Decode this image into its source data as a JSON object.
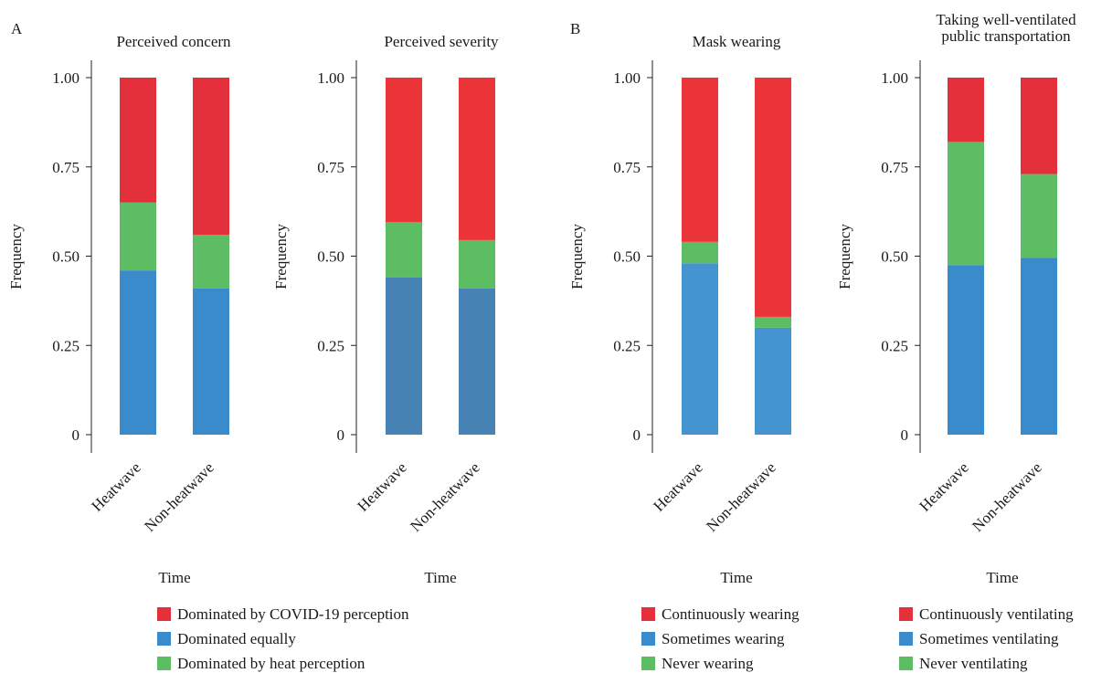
{
  "panel_letters": [
    "A",
    "B"
  ],
  "chart_data": [
    {
      "type": "bar",
      "stacked": true,
      "panel": "A",
      "title": "Perceived concern",
      "xlabel": "Time",
      "ylabel": "Frequency",
      "ylim": [
        0,
        1
      ],
      "yticks": [
        "0",
        "0.25",
        "0.50",
        "0.75",
        "1.00"
      ],
      "categories": [
        "Heatwave",
        "Non-heatwave"
      ],
      "series": [
        {
          "name": "Dominated equally",
          "color": "#3a8bcb",
          "values": [
            0.46,
            0.41
          ]
        },
        {
          "name": "Dominated by heat perception",
          "color": "#5cbd63",
          "values": [
            0.19,
            0.15
          ]
        },
        {
          "name": "Dominated by COVID-19 perception",
          "color": "#e3303a",
          "values": [
            0.35,
            0.44
          ]
        }
      ]
    },
    {
      "type": "bar",
      "stacked": true,
      "panel": "A",
      "title": "Perceived severity",
      "xlabel": "Time",
      "ylabel": "Frequency",
      "ylim": [
        0,
        1
      ],
      "yticks": [
        "0",
        "0.25",
        "0.50",
        "0.75",
        "1.00"
      ],
      "categories": [
        "Heatwave",
        "Non-heatwave"
      ],
      "series": [
        {
          "name": "Dominated equally",
          "color": "#4784b5",
          "values": [
            0.44,
            0.41
          ]
        },
        {
          "name": "Dominated by heat perception",
          "color": "#5cbd63",
          "values": [
            0.155,
            0.135
          ]
        },
        {
          "name": "Dominated by COVID-19 perception",
          "color": "#ec3539",
          "values": [
            0.405,
            0.455
          ]
        }
      ]
    },
    {
      "type": "bar",
      "stacked": true,
      "panel": "B",
      "title": "Mask wearing",
      "xlabel": "Time",
      "ylabel": "Frequency",
      "ylim": [
        0,
        1
      ],
      "yticks": [
        "0",
        "0.25",
        "0.50",
        "0.75",
        "1.00"
      ],
      "categories": [
        "Heatwave",
        "Non-heatwave"
      ],
      "series": [
        {
          "name": "Sometimes wearing",
          "color": "#4394d0",
          "values": [
            0.48,
            0.3
          ]
        },
        {
          "name": "Never wearing",
          "color": "#5cbd63",
          "values": [
            0.06,
            0.03
          ]
        },
        {
          "name": "Continuously wearing",
          "color": "#ec3539",
          "values": [
            0.46,
            0.67
          ]
        }
      ]
    },
    {
      "type": "bar",
      "stacked": true,
      "panel": "B",
      "title": "Taking well-ventilated public transportation",
      "title_lines": [
        "Taking well-ventilated",
        "public transportation"
      ],
      "xlabel": "Time",
      "ylabel": "Frequency",
      "ylim": [
        0,
        1
      ],
      "yticks": [
        "0",
        "0.25",
        "0.50",
        "0.75",
        "1.00"
      ],
      "categories": [
        "Heatwave",
        "Non-heatwave"
      ],
      "series": [
        {
          "name": "Sometimes ventilating",
          "color": "#3a8bcb",
          "values": [
            0.475,
            0.495
          ]
        },
        {
          "name": "Never ventilating",
          "color": "#5cbd63",
          "values": [
            0.345,
            0.235
          ]
        },
        {
          "name": "Continuously ventilating",
          "color": "#e3303a",
          "values": [
            0.18,
            0.27
          ]
        }
      ]
    }
  ],
  "legends": [
    {
      "items": [
        {
          "label": "Dominated by COVID-19 perception",
          "color": "#e3303a"
        },
        {
          "label": "Dominated equally",
          "color": "#3a8bcb"
        },
        {
          "label": "Dominated by heat perception",
          "color": "#5cbd63"
        }
      ]
    },
    {
      "items": [
        {
          "label": "Continuously wearing",
          "color": "#e3303a"
        },
        {
          "label": "Sometimes wearing",
          "color": "#3a8bcb"
        },
        {
          "label": "Never wearing",
          "color": "#5cbd63"
        }
      ]
    },
    {
      "items": [
        {
          "label": "Continuously ventilating",
          "color": "#e3303a"
        },
        {
          "label": "Sometimes ventilating",
          "color": "#3a8bcb"
        },
        {
          "label": "Never ventilating",
          "color": "#5cbd63"
        }
      ]
    }
  ]
}
